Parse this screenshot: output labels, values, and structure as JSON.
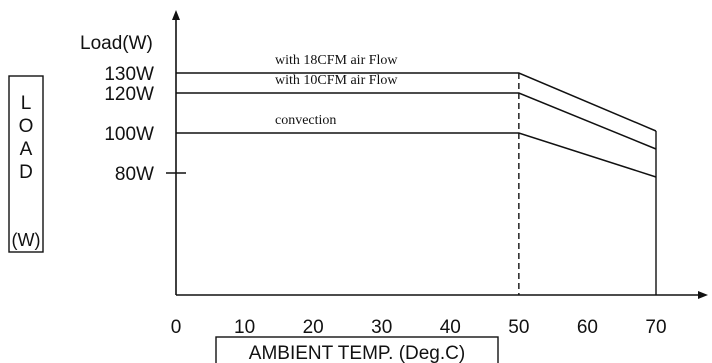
{
  "chart_data": {
    "type": "line",
    "ylabel_top": "Load(W)",
    "side_label_letters": [
      "L",
      "O",
      "A",
      "D"
    ],
    "side_label_unit": "(W)",
    "xlabel": "AMBIENT TEMP. (Deg.C)",
    "x_ticks": [
      "0",
      "10",
      "20",
      "30",
      "40",
      "50",
      "60",
      "70"
    ],
    "y_ticks": [
      {
        "label": "130W",
        "value": 130
      },
      {
        "label": "120W",
        "value": 120
      },
      {
        "label": "100W",
        "value": 100
      },
      {
        "label": "80W",
        "value": 80
      }
    ],
    "xlim": [
      0,
      80
    ],
    "series": [
      {
        "name": "with 18CFM air Flow",
        "x": [
          0,
          50,
          70
        ],
        "y": [
          130,
          130,
          101
        ]
      },
      {
        "name": "with 10CFM air Flow",
        "x": [
          0,
          50,
          70
        ],
        "y": [
          120,
          120,
          92
        ]
      },
      {
        "name": "convection",
        "x": [
          0,
          50,
          70
        ],
        "y": [
          100,
          100,
          78
        ]
      }
    ],
    "reference_x": 50,
    "grid": false,
    "legend": "inline"
  }
}
